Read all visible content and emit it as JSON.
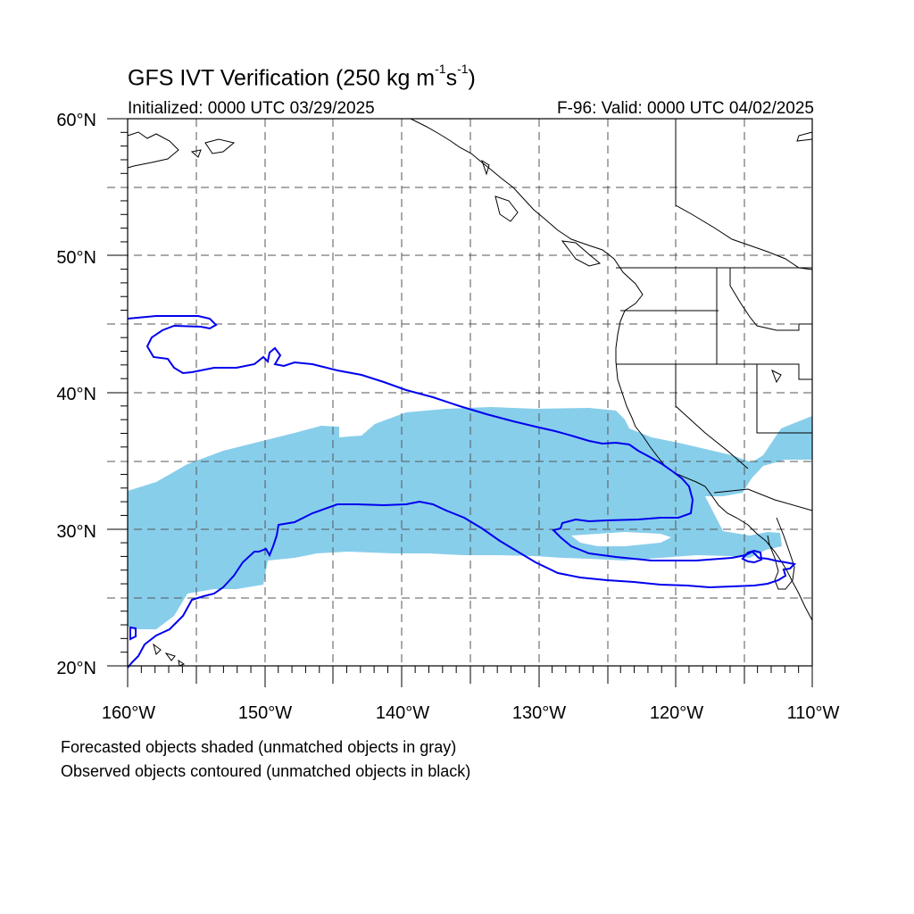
{
  "title": {
    "main": "GFS IVT Verification (250 kg m",
    "exp1": "-1",
    "mid": "s",
    "exp2": "-1",
    "end": ")"
  },
  "subtitle_left": "Initialized: 0000 UTC 03/29/2025",
  "subtitle_right": "F-96: Valid: 0000 UTC 04/02/2025",
  "y_ticks": [
    "60°N",
    "50°N",
    "40°N",
    "30°N",
    "20°N"
  ],
  "x_ticks": [
    "160°W",
    "150°W",
    "140°W",
    "130°W",
    "120°W",
    "110°W"
  ],
  "footnotes": [
    "Forecasted objects shaded (unmatched objects in gray)",
    "Observed objects contoured (unmatched objects in black)"
  ],
  "map_data": {
    "projection": "cylindrical equidistant",
    "lon_range": [
      -160,
      -110
    ],
    "lat_range": [
      20,
      60
    ],
    "grid_spacing_deg": 5,
    "grid_style": "dashed gray",
    "forecast_fill_color": "#87ceeb",
    "observed_contour_color": "#0000ff",
    "coastline_color": "#000000"
  }
}
